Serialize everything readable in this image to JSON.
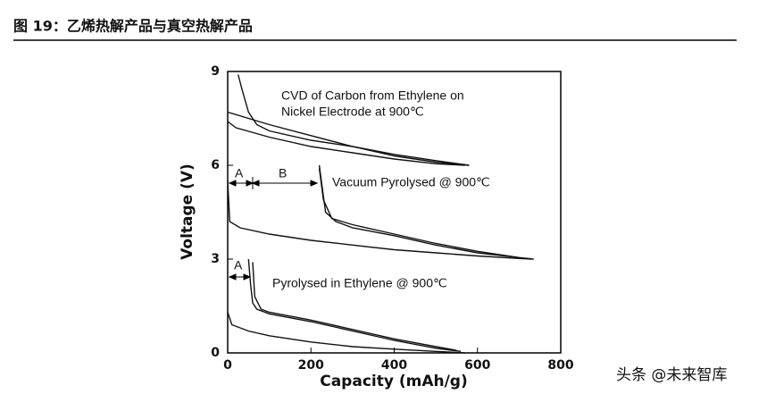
{
  "figure_title": "图 19：乙烯热解产品与真空热解产品",
  "watermark": "头条 @未来智库",
  "chart_data": {
    "type": "line",
    "xlabel": "Capacity (mAh/g)",
    "ylabel": "Voltage (V)",
    "xlim": [
      0,
      800
    ],
    "xticks": [
      0,
      200,
      400,
      600,
      800
    ],
    "ylim": [
      0,
      9
    ],
    "yticks": [
      0,
      3,
      6,
      9
    ],
    "annotations": [
      "CVD of Carbon from Ethylene on",
      "Nickel Electrode at 900℃",
      "Vacuum Pyrolysed @ 900℃",
      "Pyrolysed in Ethylene @ 900℃",
      "A",
      "B",
      "A"
    ],
    "series": [
      {
        "color": "#111111",
        "x": [
          25,
          35,
          50,
          70,
          100,
          200,
          300,
          400,
          500,
          580
        ],
        "values": [
          8.9,
          8.4,
          7.7,
          7.3,
          7.1,
          6.8,
          6.6,
          6.35,
          6.15,
          6.0
        ]
      },
      {
        "color": "#111111",
        "x": [
          580,
          500,
          400,
          300,
          200,
          100,
          50,
          0
        ],
        "values": [
          6.0,
          6.1,
          6.3,
          6.6,
          6.95,
          7.3,
          7.5,
          7.7
        ]
      },
      {
        "color": "#111111",
        "x": [
          0,
          20,
          100,
          200,
          300,
          400,
          500,
          570
        ],
        "values": [
          7.4,
          7.2,
          6.9,
          6.6,
          6.4,
          6.2,
          6.05,
          6.0
        ]
      },
      {
        "color": "#111111",
        "x": [
          220,
          225,
          235,
          260,
          300,
          400,
          500,
          600,
          700,
          735
        ],
        "values": [
          6.0,
          5.5,
          4.5,
          4.2,
          4.0,
          3.75,
          3.45,
          3.2,
          3.05,
          3.0
        ]
      },
      {
        "color": "#111111",
        "x": [
          0,
          5,
          30,
          100,
          200,
          300,
          400,
          500,
          600,
          700,
          730
        ],
        "values": [
          5.5,
          4.2,
          4.0,
          3.8,
          3.6,
          3.45,
          3.3,
          3.2,
          3.1,
          3.02,
          3.0
        ]
      },
      {
        "color": "#111111",
        "x": [
          220,
          230,
          250,
          300,
          400,
          500,
          600,
          700
        ],
        "values": [
          5.9,
          4.9,
          4.3,
          4.1,
          3.8,
          3.5,
          3.25,
          3.05
        ]
      },
      {
        "color": "#111111",
        "x": [
          50,
          55,
          60,
          70,
          100,
          200,
          300,
          400,
          500,
          560
        ],
        "values": [
          3.0,
          2.2,
          1.6,
          1.4,
          1.25,
          1.0,
          0.7,
          0.4,
          0.15,
          0.05
        ]
      },
      {
        "color": "#111111",
        "x": [
          0,
          10,
          50,
          100,
          200,
          300,
          400,
          500,
          570
        ],
        "values": [
          1.3,
          0.9,
          0.7,
          0.55,
          0.35,
          0.2,
          0.12,
          0.05,
          0.0
        ]
      },
      {
        "color": "#111111",
        "x": [
          60,
          65,
          80,
          100,
          200,
          300,
          400,
          500,
          550
        ],
        "values": [
          2.9,
          1.8,
          1.4,
          1.3,
          1.05,
          0.75,
          0.45,
          0.2,
          0.08
        ]
      }
    ]
  }
}
